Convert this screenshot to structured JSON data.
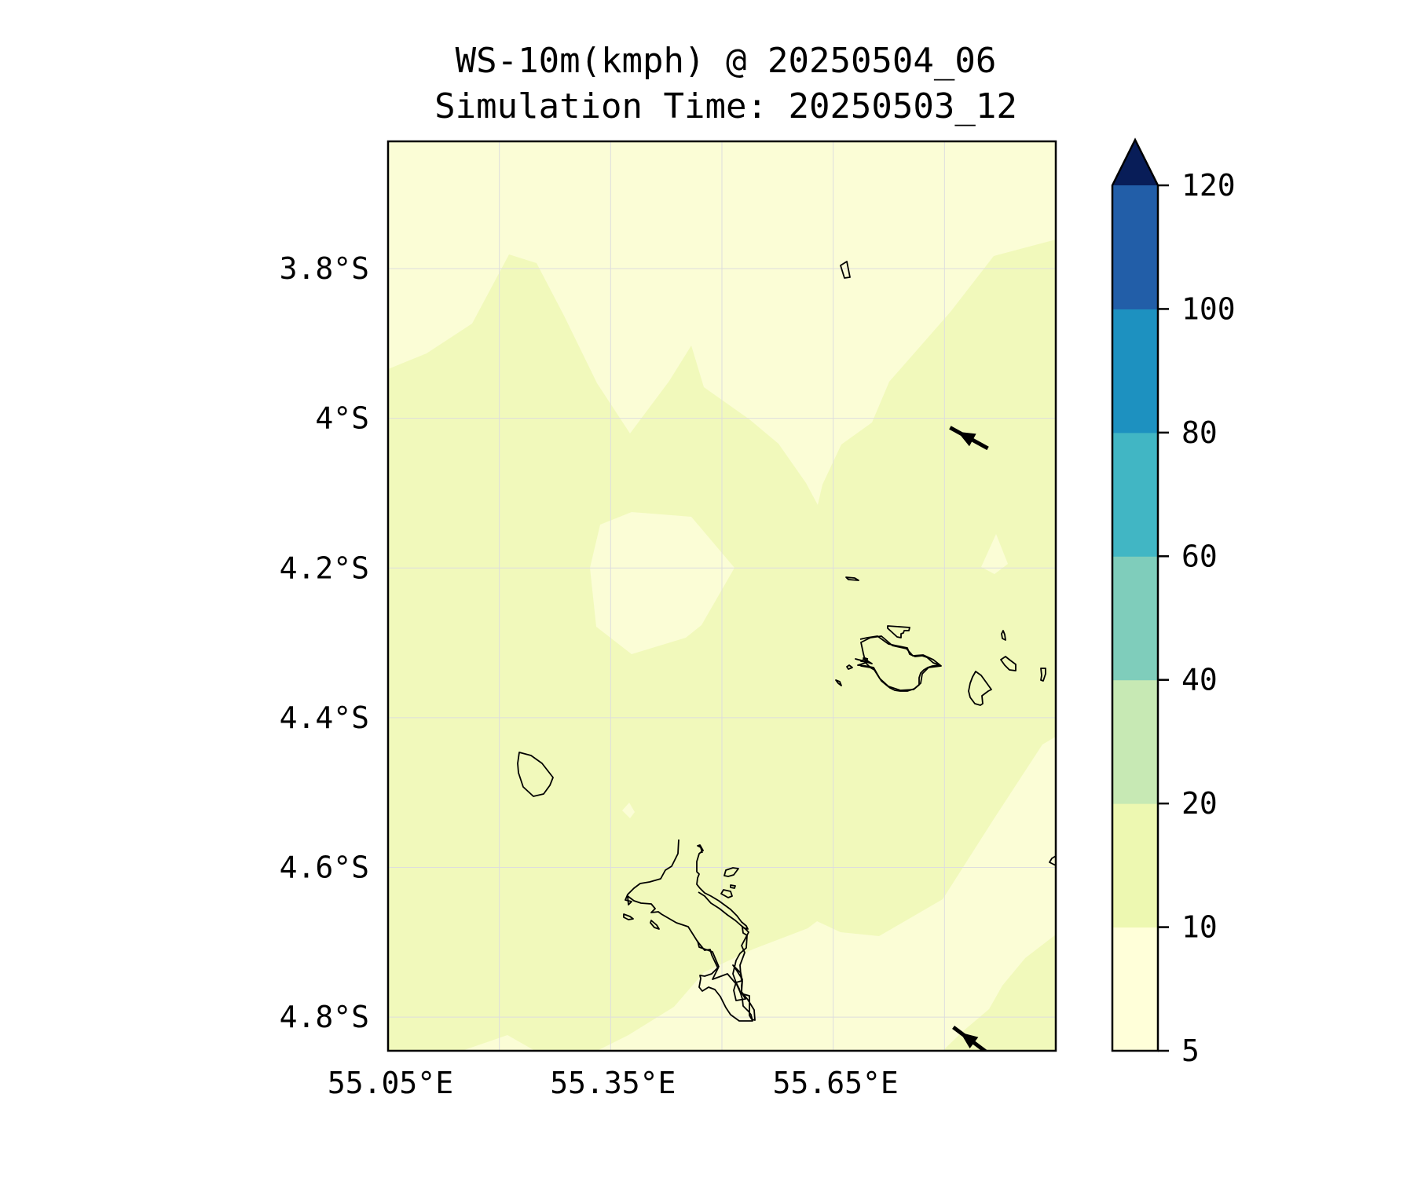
{
  "title": {
    "line1": "WS-10m(kmph) @ 20250504_06",
    "line2": "Simulation Time: 20250503_12"
  },
  "map": {
    "lon_range": [
      55.05,
      55.95
    ],
    "lat_range": [
      -4.845,
      -3.63
    ],
    "lat_ticks": [
      {
        "value": -3.8,
        "label": "3.8°S"
      },
      {
        "value": -4.0,
        "label": "4°S"
      },
      {
        "value": -4.2,
        "label": "4.2°S"
      },
      {
        "value": -4.4,
        "label": "4.4°S"
      },
      {
        "value": -4.6,
        "label": "4.6°S"
      },
      {
        "value": -4.8,
        "label": "4.8°S"
      }
    ],
    "lon_ticks": [
      {
        "value": 55.05,
        "label": "55.05°E"
      },
      {
        "value": 55.35,
        "label": "55.35°E"
      },
      {
        "value": 55.65,
        "label": "55.65°E"
      }
    ],
    "grid_lons": [
      55.05,
      55.2,
      55.35,
      55.5,
      55.65,
      55.8,
      55.95
    ],
    "grid": true,
    "wind_vectors": [
      {
        "lon": 55.85,
        "lat": -4.037,
        "u": -1,
        "v": 0.55
      },
      {
        "lon": 55.85,
        "lat": -4.845,
        "u": -1,
        "v": 0.75
      }
    ]
  },
  "colorbar": {
    "levels": [
      5,
      10,
      20,
      40,
      60,
      80,
      100,
      120
    ],
    "colors": [
      "#ffffd9",
      "#edf8b1",
      "#c7e9b4",
      "#7fcdbb",
      "#41b6c4",
      "#1d91c0",
      "#225ea8",
      "#253494"
    ],
    "extend_color": "#081d58",
    "extend": "max",
    "tick_labels": [
      "5",
      "10",
      "20",
      "40",
      "60",
      "80",
      "100",
      "120"
    ]
  },
  "colors": {
    "background_field": "#f1f9bb",
    "light_field": "#fbfdd6"
  }
}
